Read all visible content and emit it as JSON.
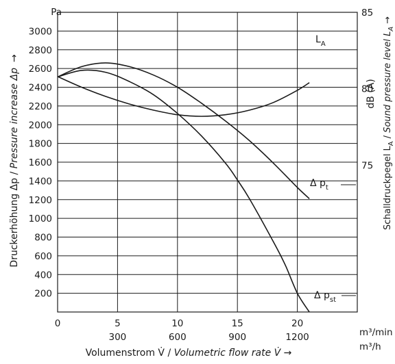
{
  "chart_data": {
    "type": "line",
    "xlabel": "Volumenstrom V̇ / Volumetric flow rate V̇ →",
    "xlabel_plain": "Volumenstrom V̇ / ",
    "xlabel_italic": "Volumetric flow rate V̇",
    "xlabel_arrow": "→",
    "ylabel_left": "Druckerhöhung Δp / Pressure increase Δp →",
    "ylabel_left_plain": "Druckerhöhung Δp / ",
    "ylabel_left_italic": "Pressure increase Δp",
    "ylabel_left_arrow": "→",
    "ylabel_right": "Schalldruckpegel LA / Sound pressure level LA →",
    "ylabel_right_plain": "Schalldruckpegel L",
    "ylabel_right_sub1": "A",
    "ylabel_right_sep": " / ",
    "ylabel_right_italic": "Sound pressure level L",
    "ylabel_right_sub2": "A",
    "ylabel_right_arrow": "→",
    "left_unit": "Pa",
    "right_unit": "dB (A)",
    "x_unit_1": "m³/min",
    "x_unit_2": "m³/h",
    "xlim": [
      0,
      25
    ],
    "ylim": [
      0,
      3200
    ],
    "right_ylim": [
      65.4,
      85
    ],
    "x_ticks": [
      0,
      5,
      10,
      15,
      20
    ],
    "x_ticks_labels": [
      "0",
      "5",
      "10",
      "15",
      "20"
    ],
    "x2_ticks": [
      5,
      10,
      15,
      20
    ],
    "x2_ticks_labels": [
      "300",
      "600",
      "900",
      "1200"
    ],
    "y_ticks": [
      200,
      400,
      600,
      800,
      1000,
      1200,
      1400,
      1600,
      1800,
      2000,
      2200,
      2400,
      2600,
      2800,
      3000
    ],
    "y_ticks_labels": [
      "200",
      "400",
      "600",
      "800",
      "1000",
      "1200",
      "1400",
      "1600",
      "1800",
      "2000",
      "2200",
      "2400",
      "2600",
      "2800",
      "3000"
    ],
    "right_ticks": [
      75,
      80,
      85
    ],
    "right_ticks_labels": [
      "75",
      "80",
      "85"
    ],
    "grid": true,
    "series": [
      {
        "name": "Δ pt",
        "label_main": "Δ p",
        "label_sub": "t",
        "x": [
          0,
          2,
          4,
          6,
          8,
          10,
          12,
          14,
          16,
          18,
          20,
          21
        ],
        "y": [
          2510,
          2620,
          2660,
          2620,
          2530,
          2400,
          2230,
          2040,
          1830,
          1590,
          1330,
          1210
        ]
      },
      {
        "name": "Δ pst",
        "label_main": "Δ p",
        "label_sub": "st",
        "x": [
          0,
          2,
          4,
          6,
          8,
          10,
          12,
          14,
          15,
          16,
          18,
          19,
          20,
          21
        ],
        "y": [
          2510,
          2580,
          2560,
          2460,
          2320,
          2120,
          1880,
          1590,
          1410,
          1210,
          750,
          500,
          200,
          0
        ]
      },
      {
        "name": "LA",
        "label_main": "L",
        "label_sub": "A",
        "axis": "right",
        "x": [
          0,
          2,
          4,
          6,
          8,
          10,
          12,
          14,
          16,
          18,
          20,
          21
        ],
        "y": [
          80.8,
          80.1,
          79.5,
          79.0,
          78.6,
          78.3,
          78.2,
          78.3,
          78.6,
          79.1,
          79.9,
          80.4
        ]
      }
    ]
  }
}
